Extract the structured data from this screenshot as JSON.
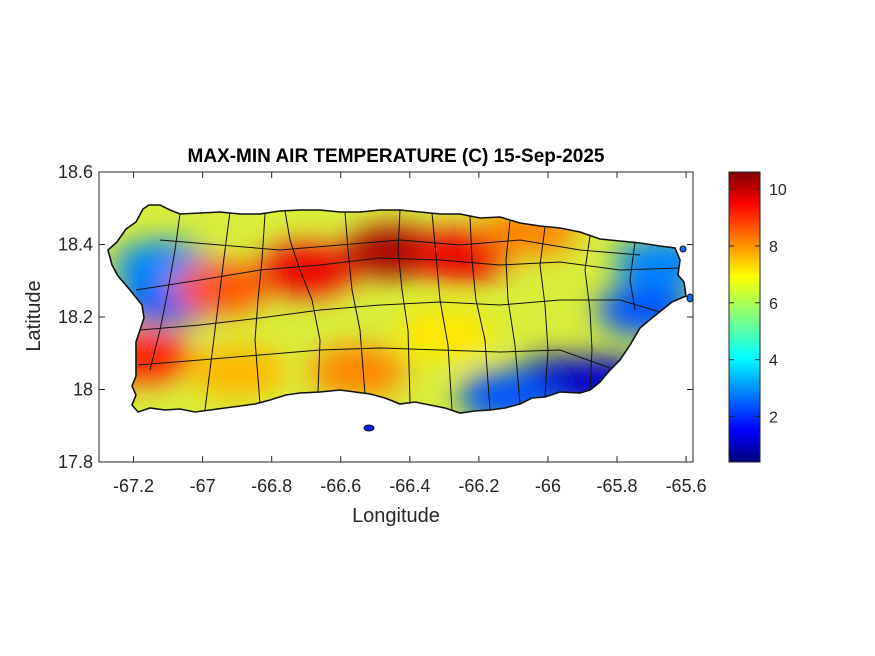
{
  "map": {
    "title": "MAX-MIN AIR TEMPERATURE (C) 15-Sep-2025",
    "xlabel": "Longitude",
    "ylabel": "Latitude",
    "x_ticks": [
      "-67.2",
      "-67",
      "-66.8",
      "-66.6",
      "-66.4",
      "-66.2",
      "-66",
      "-65.8",
      "-65.6"
    ],
    "y_ticks": [
      "18.6",
      "18.4",
      "18.2",
      "18",
      "17.8"
    ],
    "xlim": [
      -67.3,
      -65.58
    ],
    "ylim": [
      17.8,
      18.6
    ],
    "colorbar": {
      "colormap": "jet",
      "range": [
        0.4,
        10.6
      ],
      "ticks": [
        "2",
        "4",
        "6",
        "8",
        "10"
      ],
      "colors": [
        "#00007f",
        "#0000ff",
        "#007fff",
        "#00ffff",
        "#7fff7f",
        "#ffff00",
        "#ff7f00",
        "#ff0000",
        "#7f0000"
      ]
    },
    "hotspots": [
      {
        "lon": -66.45,
        "lat": 18.38,
        "value": 10.2
      },
      {
        "lon": -66.25,
        "lat": 18.37,
        "value": 9.5
      },
      {
        "lon": -66.7,
        "lat": 18.33,
        "value": 9.5
      },
      {
        "lon": -67.17,
        "lat": 18.09,
        "value": 9.0
      },
      {
        "lon": -66.95,
        "lat": 18.28,
        "value": 8.5
      },
      {
        "lon": -66.05,
        "lat": 18.44,
        "value": 8.0
      },
      {
        "lon": -66.55,
        "lat": 18.05,
        "value": 8.0
      },
      {
        "lon": -66.9,
        "lat": 18.05,
        "value": 7.5
      },
      {
        "lon": -66.3,
        "lat": 18.15,
        "value": 7.0
      }
    ],
    "coldspots": [
      {
        "lon": -65.97,
        "lat": 18.02,
        "value": 1.0
      },
      {
        "lon": -65.85,
        "lat": 18.02,
        "value": 1.2
      },
      {
        "lon": -65.72,
        "lat": 18.22,
        "value": 2.5
      },
      {
        "lon": -67.1,
        "lat": 18.25,
        "value": 2.5
      },
      {
        "lon": -67.12,
        "lat": 18.34,
        "value": 3.0
      },
      {
        "lon": -65.67,
        "lat": 18.35,
        "value": 3.0
      },
      {
        "lon": -66.12,
        "lat": 17.98,
        "value": 2.5
      }
    ]
  }
}
